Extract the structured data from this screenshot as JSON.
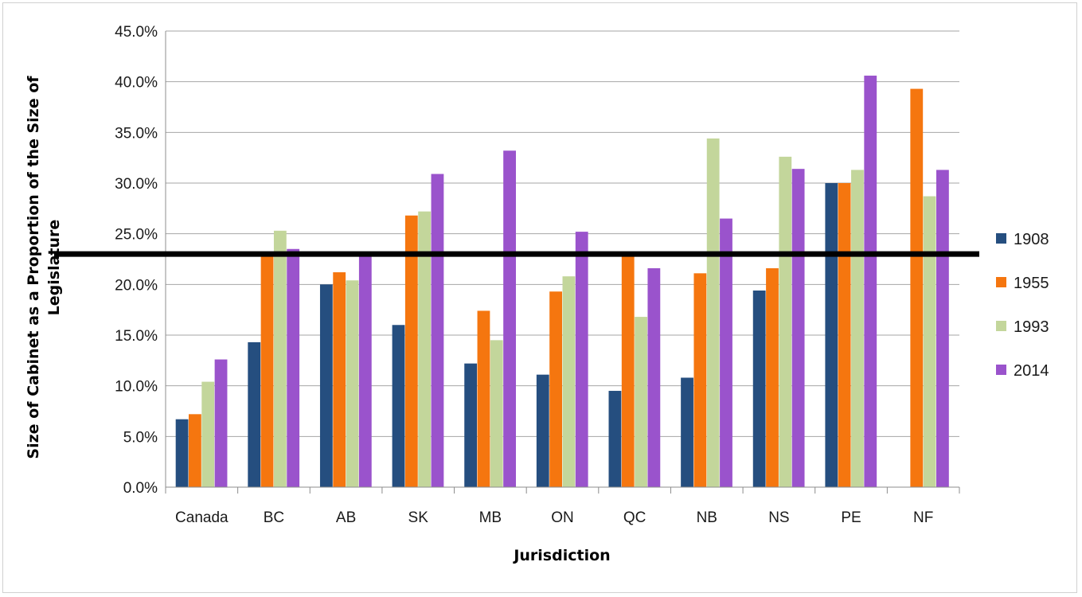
{
  "chart_data": {
    "type": "bar",
    "title": "",
    "xlabel": "Jurisdiction",
    "ylabel": "Size of Cabinet as a Proportion of the Size of Legislature",
    "ylabel_lines": [
      "Size of Cabinet as a Proportion of the Size of",
      "Legislature"
    ],
    "ylim": [
      0,
      45
    ],
    "yticks": [
      0,
      5,
      10,
      15,
      20,
      25,
      30,
      35,
      40,
      45
    ],
    "ytick_labels": [
      "0.0%",
      "5.0%",
      "10.0%",
      "15.0%",
      "20.0%",
      "25.0%",
      "30.0%",
      "35.0%",
      "40.0%",
      "45.0%"
    ],
    "categories": [
      "Canada",
      "BC",
      "AB",
      "SK",
      "MB",
      "ON",
      "QC",
      "NB",
      "NS",
      "PE",
      "NF"
    ],
    "series": [
      {
        "name": "1908",
        "color": "#254e7f",
        "values": [
          6.7,
          14.3,
          20.0,
          16.0,
          12.2,
          11.1,
          9.5,
          10.8,
          19.4,
          30.0,
          null
        ]
      },
      {
        "name": "1955",
        "color": "#f5760f",
        "values": [
          7.2,
          23.0,
          21.2,
          26.8,
          17.4,
          19.3,
          23.0,
          21.1,
          21.6,
          30.0,
          39.3
        ]
      },
      {
        "name": "1993",
        "color": "#c3d69b",
        "values": [
          10.4,
          25.3,
          20.4,
          27.2,
          14.5,
          20.8,
          16.8,
          34.4,
          32.6,
          31.3,
          28.7
        ]
      },
      {
        "name": "2014",
        "color": "#9a53cc",
        "values": [
          12.6,
          23.5,
          23.0,
          30.9,
          33.2,
          25.2,
          21.6,
          26.5,
          31.4,
          40.6,
          31.3
        ]
      }
    ],
    "reference_line": {
      "value": 23.0,
      "color": "#000000"
    },
    "grid": true,
    "legend_position": "right"
  }
}
